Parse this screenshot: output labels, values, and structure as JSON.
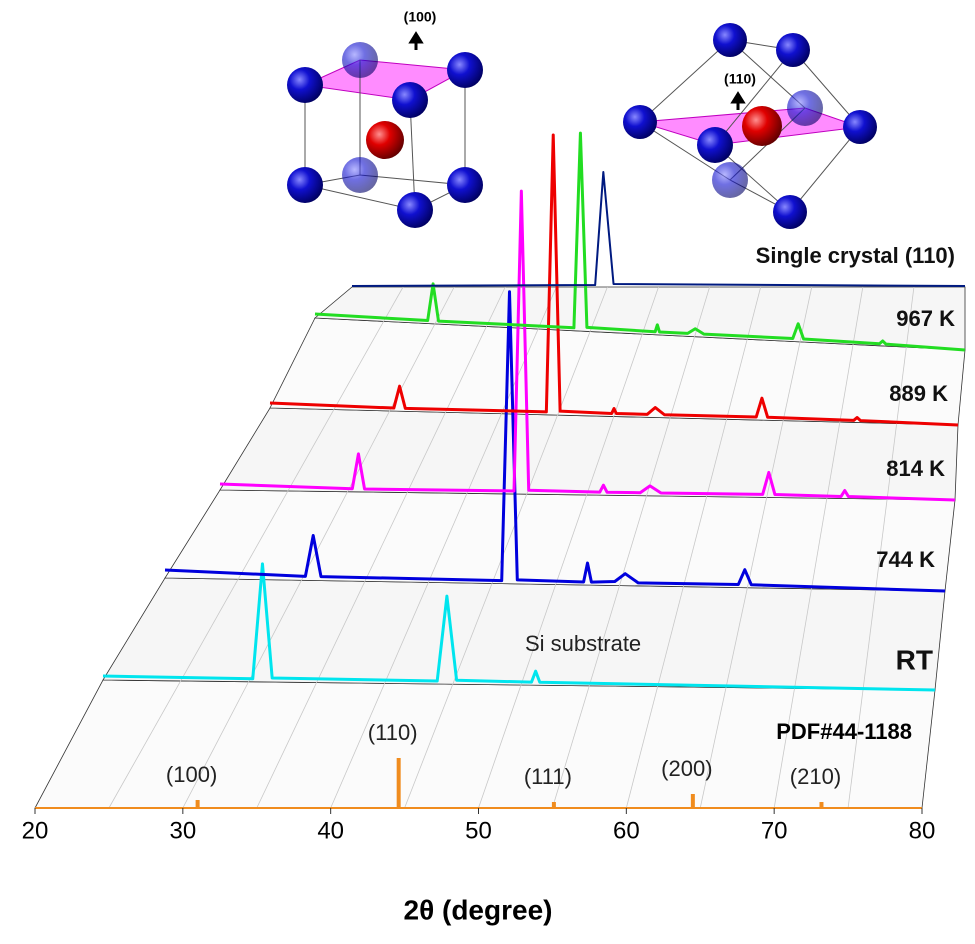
{
  "chart_data": {
    "type": "waterfall",
    "xlabel": "2θ (degree)",
    "xlim": [
      20,
      80
    ],
    "xticks": [
      20,
      30,
      40,
      50,
      60,
      70,
      80
    ],
    "insets": [
      "(100)",
      "(110)"
    ],
    "annotation": "Si substrate",
    "reference": {
      "name": "PDF#44-1188",
      "color": "#f08c1e",
      "x": [
        31.0,
        44.6,
        55.1,
        64.5,
        73.2
      ],
      "values": [
        8,
        50,
        6,
        14,
        6
      ],
      "labels": [
        "(100)",
        "(110)",
        "(111)",
        "(200)",
        "(210)"
      ]
    },
    "series": [
      {
        "name": "RT",
        "color": "#00e5ee",
        "x": [
          20,
          30.8,
          31.5,
          32.2,
          44.1,
          44.8,
          45.5,
          50.9,
          51.2,
          51.5,
          80
        ],
        "values": [
          4,
          3,
          118,
          4,
          3,
          88,
          4,
          3,
          14,
          3,
          0
        ]
      },
      {
        "name": "744 K",
        "color": "#0000dd",
        "x": [
          20,
          30.8,
          31.4,
          32.0,
          45.9,
          46.5,
          47.1,
          52.2,
          52.5,
          52.8,
          54.6,
          55.4,
          56.4,
          64.1,
          64.6,
          65.1,
          80
        ],
        "values": [
          8,
          4,
          45,
          4,
          3,
          292,
          4,
          3,
          22,
          3,
          4,
          12,
          3,
          3,
          18,
          3,
          0
        ]
      },
      {
        "name": "814 K",
        "color": "#ff00ff",
        "x": [
          20,
          30.8,
          31.3,
          31.8,
          44.0,
          44.6,
          45.2,
          51.0,
          51.3,
          51.6,
          54.3,
          55.1,
          56.0,
          64.3,
          64.8,
          65.3,
          70.7,
          71.0,
          71.3,
          80
        ],
        "values": [
          6,
          3,
          38,
          3,
          3,
          303,
          4,
          3,
          10,
          3,
          3,
          10,
          3,
          3,
          25,
          3,
          2,
          8,
          2,
          0
        ]
      },
      {
        "name": "889 K",
        "color": "#ee0000",
        "x": [
          20,
          30.8,
          31.3,
          31.8,
          44.1,
          44.7,
          45.3,
          49.8,
          50.0,
          50.2,
          52.9,
          53.6,
          54.4,
          62.4,
          62.9,
          63.4,
          70.9,
          71.2,
          71.5,
          80
        ],
        "values": [
          5,
          3,
          25,
          3,
          3,
          280,
          4,
          3,
          8,
          3,
          3,
          10,
          3,
          3,
          22,
          3,
          2,
          5,
          2,
          0
        ]
      },
      {
        "name": "967 K",
        "color": "#22dd22",
        "x": [
          20,
          30.4,
          30.9,
          31.4,
          43.9,
          44.5,
          45.1,
          51.4,
          51.6,
          51.8,
          54.4,
          55.1,
          55.9,
          64.1,
          64.6,
          65.1,
          72.1,
          72.4,
          72.7,
          80
        ],
        "values": [
          4,
          3,
          40,
          3,
          3,
          198,
          4,
          3,
          10,
          3,
          3,
          8,
          3,
          3,
          18,
          3,
          2,
          5,
          2,
          0
        ]
      },
      {
        "name": "Single crystal (110)",
        "color": "#001a80",
        "x": [
          20,
          43.8,
          44.6,
          45.6,
          80
        ],
        "values": [
          1,
          2,
          115,
          3,
          1
        ]
      }
    ]
  }
}
